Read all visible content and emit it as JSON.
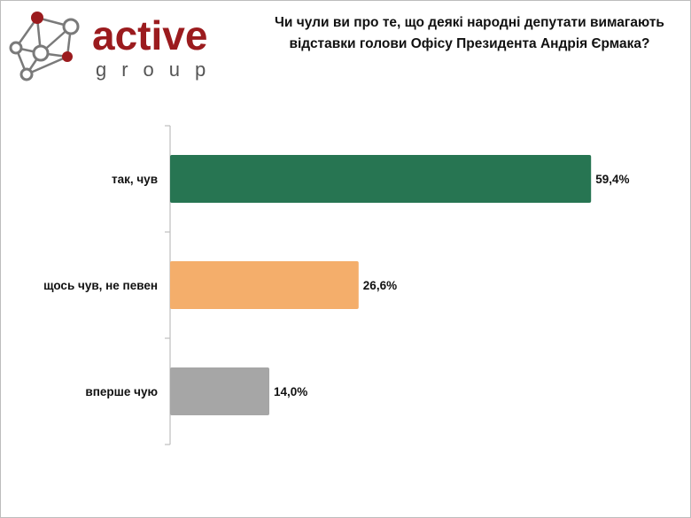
{
  "logo": {
    "brand_word": "active",
    "brand_sub": "group",
    "colors": {
      "red": "#9b1b1e",
      "gray": "#555555",
      "node": "#7a7a7a"
    }
  },
  "chart_data": {
    "type": "bar",
    "orientation": "horizontal",
    "title": "Чи чули ви про те, що деякі народні депутати вимагають відставки голови Офісу Президента Андрія Єрмака?",
    "categories": [
      "так, чув",
      "щось чув, не певен",
      "вперше чую"
    ],
    "values": [
      59.4,
      26.6,
      14.0
    ],
    "value_labels": [
      "59,4%",
      "26,6%",
      "14,0%"
    ],
    "colors": [
      "#277552",
      "#f4ae6b",
      "#a6a6a6"
    ],
    "xlim": [
      0,
      100
    ],
    "grid": false,
    "legend": "none"
  }
}
